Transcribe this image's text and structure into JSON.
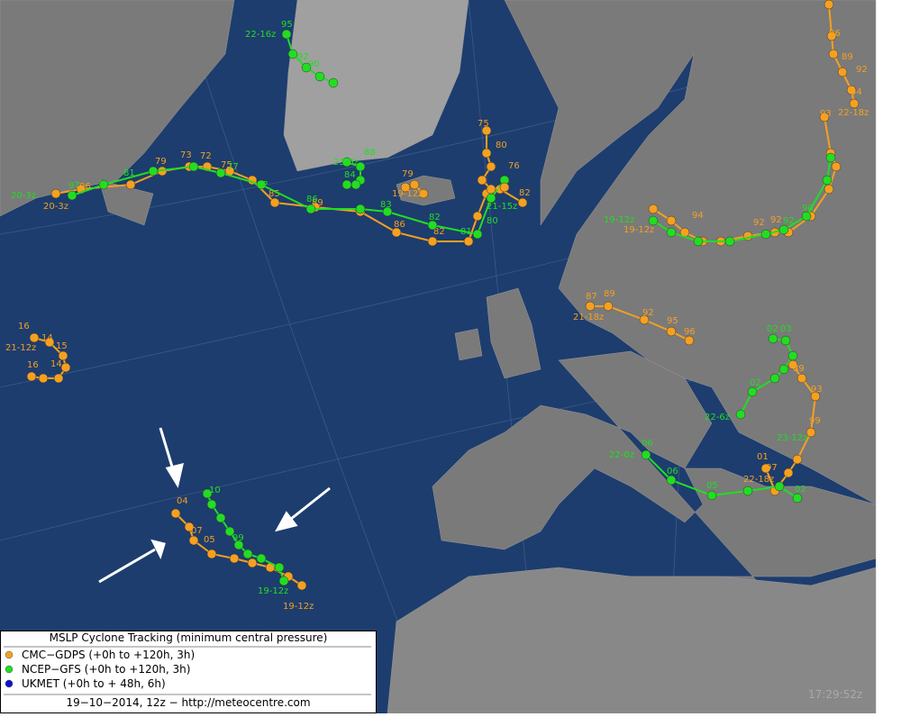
{
  "legend": {
    "title": "MSLP Cyclone Tracking (minimum central pressure)",
    "items": [
      {
        "label": "CMC−GDPS (+0h to +120h, 3h)",
        "color": "#f5a020"
      },
      {
        "label": "NCEP−GFS (+0h to +120h, 3h)",
        "color": "#22dd22"
      },
      {
        "label": "UKMET (+0h to +  48h, 6h)",
        "color": "#1010cc"
      }
    ],
    "footer": "19−10−2014, 12z − http://meteocentre.com"
  },
  "timestamp": "17:29:52z",
  "tracks": [
    {
      "color": "#f5a020",
      "labels": [
        "20-3z",
        "96",
        "79",
        "73",
        "72",
        "75",
        "85",
        "89",
        "86",
        "82",
        "82"
      ]
    },
    {
      "color": "#22dd22",
      "labels": [
        "20-3z",
        "97",
        "81",
        "77",
        "82",
        "86",
        "83",
        "82",
        "81",
        "80",
        "21-15z"
      ]
    },
    {
      "color": "#22dd22",
      "labels": [
        "22-16z",
        "95",
        "92",
        "90"
      ]
    },
    {
      "color": "#f5a020",
      "labels": [
        "96",
        "89",
        "92",
        "94",
        "22-18z"
      ]
    },
    {
      "color": "#f5a020",
      "labels": [
        "93",
        "92",
        "94",
        "19-12z",
        "92"
      ]
    },
    {
      "color": "#22dd22",
      "labels": [
        "19-12z",
        "90",
        "92"
      ]
    },
    {
      "color": "#f5a020",
      "labels": [
        "87",
        "89",
        "21-18z",
        "92",
        "95",
        "96"
      ]
    },
    {
      "color": "#22dd22",
      "labels": [
        "22-6z",
        "02",
        "03",
        "02"
      ]
    },
    {
      "color": "#f5a020",
      "labels": [
        "97",
        "01",
        "99",
        "93",
        "89",
        "22-18z"
      ]
    },
    {
      "color": "#22dd22",
      "labels": [
        "22-0z",
        "06",
        "06",
        "05",
        "02",
        "23-12z"
      ]
    },
    {
      "color": "#f5a020",
      "labels": [
        "04",
        "07",
        "05",
        "19-12z"
      ]
    },
    {
      "color": "#22dd22",
      "labels": [
        "10",
        "99",
        "19-12z"
      ]
    },
    {
      "color": "#f5a020",
      "labels": [
        "16",
        "14",
        "21-12z",
        "15",
        "16",
        "14"
      ]
    },
    {
      "color": "#f5a020",
      "labels": [
        "75",
        "80",
        "76"
      ]
    },
    {
      "color": "#22dd22",
      "labels": [
        "23-0z",
        "88",
        "84"
      ]
    },
    {
      "color": "#f5a020",
      "labels": [
        "79",
        "19-12z"
      ]
    }
  ]
}
